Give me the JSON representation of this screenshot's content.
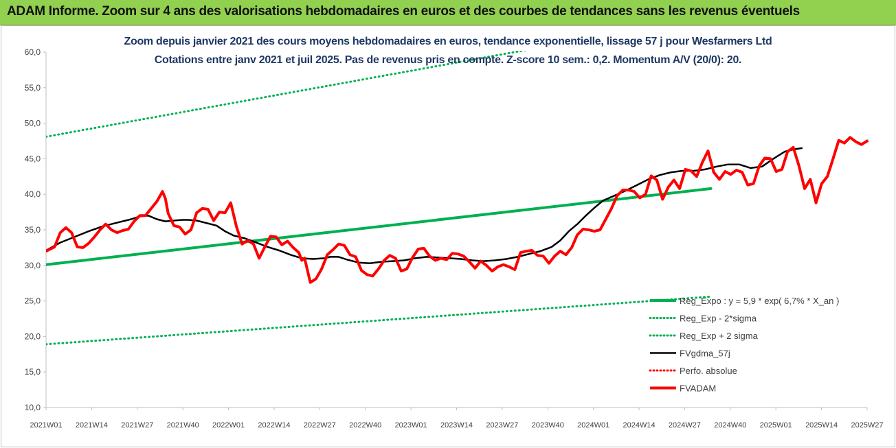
{
  "header": {
    "title": "ADAM Informe. Zoom sur 4 ans des valorisations hebdomadaires en euros et des courbes de tendances sans les revenus éventuels"
  },
  "chart_data": {
    "type": "line",
    "title": "Zoom depuis janvier 2021 des cours moyens hebdomadaires en euros, tendance exponentielle, lissage 57 j pour Wesfarmers Ltd",
    "subtitle": "Cotations entre janv 2021 et juil 2025. Pas de revenus pris en compte. Z-score 10 sem.: 0,2. Momentum A/V (20/0): 20.",
    "ylim": [
      10,
      60
    ],
    "y_ticks": [
      "10,0",
      "15,0",
      "20,0",
      "25,0",
      "30,0",
      "35,0",
      "40,0",
      "45,0",
      "50,0",
      "55,0",
      "60,0"
    ],
    "x_ticks": [
      "2021W01",
      "2021W14",
      "2021W27",
      "2021W40",
      "2022W01",
      "2022W14",
      "2022W27",
      "2022W40",
      "2023W01",
      "2023W14",
      "2023W27",
      "2023W40",
      "2024W01",
      "2024W14",
      "2024W27",
      "2024W40",
      "2025W01",
      "2025W14",
      "2025W27"
    ],
    "x_range_weeks": [
      0,
      234
    ],
    "legend_position": "bottom-right",
    "series": [
      {
        "name": "Reg_Expo : y = 5,9 * exp( 6,7% * X_an )",
        "color": "#00b050",
        "style": "solid",
        "points": [
          [
            0,
            30.1
          ],
          [
            234,
            40.8
          ]
        ]
      },
      {
        "name": "Reg_Exp - 2*sigma",
        "color": "#00b050",
        "style": "dotted",
        "points": [
          [
            0,
            18.9
          ],
          [
            234,
            25.6
          ]
        ]
      },
      {
        "name": "Reg_Exp + 2 sigma",
        "color": "#00b050",
        "style": "dotted",
        "points": [
          [
            0,
            48.1
          ],
          [
            234,
            65.0
          ]
        ]
      },
      {
        "name": "FVgdma_57j",
        "color": "#000000",
        "style": "solid",
        "points": [
          [
            0,
            32.1
          ],
          [
            5,
            33.2
          ],
          [
            10,
            34.0
          ],
          [
            15,
            34.8
          ],
          [
            20,
            35.5
          ],
          [
            25,
            36.0
          ],
          [
            30,
            36.5
          ],
          [
            33,
            36.9
          ],
          [
            36,
            37.0
          ],
          [
            39,
            36.5
          ],
          [
            42,
            36.2
          ],
          [
            45,
            36.3
          ],
          [
            48,
            36.4
          ],
          [
            50,
            36.4
          ],
          [
            53,
            36.3
          ],
          [
            56,
            36.0
          ],
          [
            60,
            35.6
          ],
          [
            63,
            34.8
          ],
          [
            66,
            34.2
          ],
          [
            70,
            33.8
          ],
          [
            74,
            33.2
          ],
          [
            78,
            32.6
          ],
          [
            82,
            32.1
          ],
          [
            86,
            31.5
          ],
          [
            90,
            31.0
          ],
          [
            94,
            30.9
          ],
          [
            98,
            31.0
          ],
          [
            100,
            31.2
          ],
          [
            103,
            31.2
          ],
          [
            106,
            30.8
          ],
          [
            110,
            30.4
          ],
          [
            114,
            30.3
          ],
          [
            118,
            30.5
          ],
          [
            122,
            30.6
          ],
          [
            126,
            30.7
          ],
          [
            130,
            31.0
          ],
          [
            134,
            31.2
          ],
          [
            138,
            31.1
          ],
          [
            142,
            31.0
          ],
          [
            146,
            30.9
          ],
          [
            150,
            30.7
          ],
          [
            154,
            30.6
          ],
          [
            158,
            30.7
          ],
          [
            162,
            30.9
          ],
          [
            166,
            31.2
          ],
          [
            170,
            31.6
          ],
          [
            174,
            32.0
          ],
          [
            178,
            32.6
          ],
          [
            181,
            33.5
          ],
          [
            184,
            34.8
          ],
          [
            187,
            35.8
          ],
          [
            190,
            37.0
          ],
          [
            193,
            38.1
          ],
          [
            196,
            39.1
          ],
          [
            200,
            39.8
          ],
          [
            204,
            40.5
          ],
          [
            208,
            41.3
          ],
          [
            212,
            42.1
          ],
          [
            216,
            42.7
          ],
          [
            220,
            43.1
          ],
          [
            224,
            43.3
          ],
          [
            228,
            43.3
          ],
          [
            232,
            43.5
          ],
          [
            236,
            43.9
          ],
          [
            240,
            44.2
          ],
          [
            244,
            44.2
          ],
          [
            248,
            43.7
          ],
          [
            252,
            43.9
          ],
          [
            256,
            45.0
          ],
          [
            260,
            46.0
          ],
          [
            263,
            46.3
          ],
          [
            266,
            46.5
          ]
        ]
      },
      {
        "name": "Perfo. absolue",
        "color": "#ff0000",
        "style": "dotted",
        "points": []
      },
      {
        "name": "FVADAM",
        "color": "#ff0000",
        "style": "solid",
        "points": [
          [
            0,
            32.0
          ],
          [
            3,
            32.6
          ],
          [
            5,
            34.6
          ],
          [
            7,
            35.3
          ],
          [
            9,
            34.6
          ],
          [
            11,
            32.6
          ],
          [
            13,
            32.5
          ],
          [
            15,
            33.1
          ],
          [
            17,
            34.0
          ],
          [
            19,
            35.0
          ],
          [
            21,
            35.8
          ],
          [
            23,
            35.0
          ],
          [
            25,
            34.6
          ],
          [
            27,
            34.9
          ],
          [
            29,
            35.1
          ],
          [
            31,
            36.2
          ],
          [
            33,
            37.0
          ],
          [
            35,
            37.0
          ],
          [
            37,
            38.0
          ],
          [
            39,
            39.0
          ],
          [
            41,
            40.4
          ],
          [
            42,
            39.4
          ],
          [
            43,
            37.3
          ],
          [
            45,
            35.6
          ],
          [
            47,
            35.4
          ],
          [
            49,
            34.4
          ],
          [
            51,
            35.0
          ],
          [
            53,
            37.4
          ],
          [
            55,
            38.0
          ],
          [
            57,
            37.9
          ],
          [
            59,
            36.3
          ],
          [
            61,
            37.5
          ],
          [
            63,
            37.4
          ],
          [
            65,
            38.8
          ],
          [
            67,
            35.5
          ],
          [
            69,
            33.0
          ],
          [
            71,
            33.5
          ],
          [
            73,
            33.0
          ],
          [
            75,
            31.0
          ],
          [
            77,
            32.6
          ],
          [
            79,
            34.1
          ],
          [
            81,
            34.0
          ],
          [
            83,
            32.9
          ],
          [
            85,
            33.4
          ],
          [
            87,
            32.5
          ],
          [
            89,
            31.8
          ],
          [
            90,
            30.7
          ],
          [
            91,
            31.0
          ],
          [
            93,
            27.6
          ],
          [
            95,
            28.1
          ],
          [
            97,
            29.5
          ],
          [
            99,
            31.5
          ],
          [
            101,
            32.2
          ],
          [
            103,
            33.0
          ],
          [
            105,
            32.8
          ],
          [
            107,
            31.5
          ],
          [
            109,
            31.2
          ],
          [
            111,
            29.3
          ],
          [
            113,
            28.7
          ],
          [
            115,
            28.5
          ],
          [
            117,
            29.5
          ],
          [
            119,
            30.7
          ],
          [
            121,
            31.4
          ],
          [
            123,
            31.0
          ],
          [
            125,
            29.2
          ],
          [
            127,
            29.5
          ],
          [
            129,
            31.1
          ],
          [
            131,
            32.3
          ],
          [
            133,
            32.4
          ],
          [
            135,
            31.3
          ],
          [
            137,
            30.7
          ],
          [
            139,
            31.0
          ],
          [
            141,
            30.8
          ],
          [
            143,
            31.7
          ],
          [
            145,
            31.6
          ],
          [
            147,
            31.3
          ],
          [
            149,
            30.5
          ],
          [
            151,
            29.6
          ],
          [
            153,
            30.6
          ],
          [
            155,
            30.0
          ],
          [
            157,
            29.2
          ],
          [
            159,
            29.8
          ],
          [
            161,
            30.1
          ],
          [
            163,
            29.8
          ],
          [
            165,
            29.4
          ],
          [
            167,
            31.8
          ],
          [
            169,
            32.0
          ],
          [
            171,
            32.1
          ],
          [
            173,
            31.4
          ],
          [
            175,
            31.3
          ],
          [
            177,
            30.3
          ],
          [
            179,
            31.3
          ],
          [
            181,
            32.0
          ],
          [
            183,
            31.5
          ],
          [
            185,
            32.5
          ],
          [
            187,
            34.3
          ],
          [
            189,
            35.1
          ],
          [
            191,
            35.0
          ],
          [
            193,
            34.8
          ],
          [
            195,
            35.0
          ],
          [
            197,
            36.5
          ],
          [
            199,
            38.0
          ],
          [
            201,
            39.8
          ],
          [
            203,
            40.6
          ],
          [
            205,
            40.6
          ],
          [
            207,
            40.4
          ],
          [
            209,
            39.5
          ],
          [
            211,
            40.0
          ],
          [
            213,
            42.6
          ],
          [
            215,
            42.0
          ],
          [
            217,
            39.3
          ],
          [
            219,
            41.0
          ],
          [
            221,
            42.0
          ],
          [
            223,
            40.8
          ],
          [
            225,
            43.5
          ],
          [
            227,
            43.3
          ],
          [
            229,
            42.5
          ],
          [
            231,
            44.5
          ],
          [
            233,
            46.1
          ],
          [
            235,
            43.1
          ],
          [
            237,
            42.1
          ],
          [
            239,
            43.2
          ],
          [
            241,
            42.8
          ],
          [
            243,
            43.4
          ],
          [
            245,
            43.1
          ],
          [
            247,
            41.3
          ],
          [
            249,
            41.5
          ],
          [
            251,
            44.0
          ],
          [
            253,
            45.1
          ],
          [
            255,
            45.0
          ],
          [
            257,
            43.2
          ],
          [
            259,
            43.5
          ],
          [
            261,
            46.0
          ],
          [
            263,
            46.6
          ],
          [
            265,
            44.0
          ],
          [
            267,
            40.8
          ],
          [
            269,
            42.1
          ],
          [
            271,
            38.8
          ],
          [
            273,
            41.5
          ],
          [
            275,
            42.5
          ],
          [
            277,
            45.0
          ],
          [
            279,
            47.6
          ],
          [
            281,
            47.2
          ],
          [
            283,
            48.0
          ],
          [
            285,
            47.4
          ],
          [
            287,
            47.0
          ],
          [
            289,
            47.5
          ]
        ]
      }
    ]
  }
}
